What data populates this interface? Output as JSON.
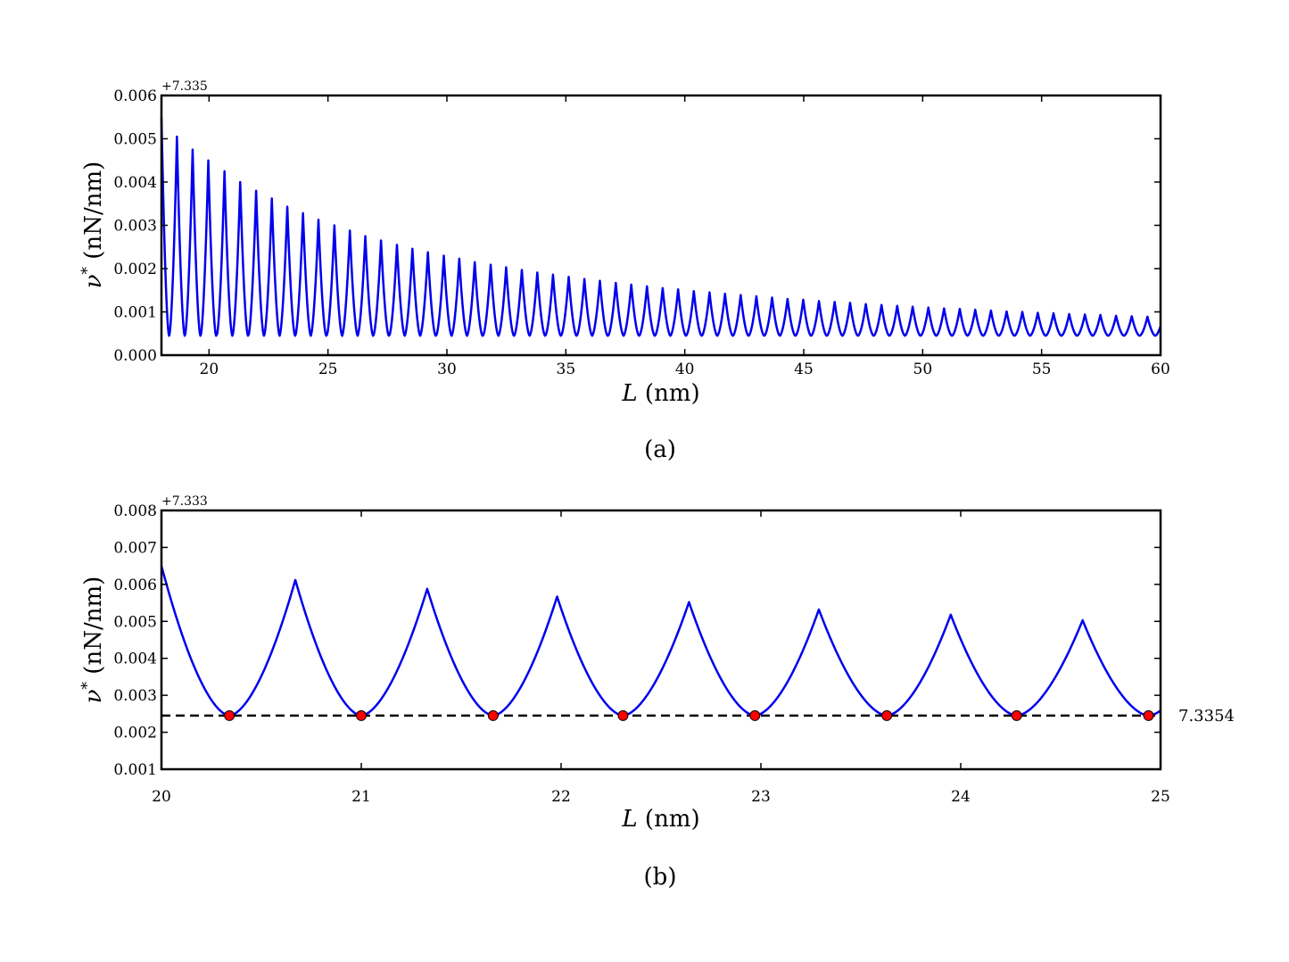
{
  "chart_data": [
    {
      "type": "line",
      "panel": "a",
      "caption": "(a)",
      "xlabel": "L (nm)",
      "xlabel_var": "L",
      "xlabel_unit": "(nm)",
      "ylabel": "ν* (nN/nm)",
      "ylabel_var": "ν",
      "ylabel_sup": "*",
      "ylabel_unit": "(nN/nm)",
      "y_offset_label": "+7.335",
      "xlim": [
        18,
        60
      ],
      "ylim": [
        0.0,
        0.006
      ],
      "x_ticks": [
        20,
        25,
        30,
        35,
        40,
        45,
        50,
        55,
        60
      ],
      "y_ticks": [
        0.0,
        0.001,
        0.002,
        0.003,
        0.004,
        0.005,
        0.006
      ],
      "y_tick_labels": [
        "0.000",
        "0.001",
        "0.002",
        "0.003",
        "0.004",
        "0.005",
        "0.006"
      ],
      "grid": false,
      "series": [
        {
          "color": "#0000ee",
          "description": "cusp-shaped oscillation with period ≈ 0.657 nm; minima constant at ≈ 0.00045 (offset units), peak heights decay with L",
          "period": 0.657,
          "min_value": 0.00045,
          "start_value": 0.0055,
          "peaks": [
            [
              18.65,
              0.00505
            ],
            [
              19.31,
              0.00475
            ],
            [
              19.97,
              0.0045
            ],
            [
              20.65,
              0.00425
            ],
            [
              21.31,
              0.004
            ],
            [
              21.98,
              0.0038
            ],
            [
              22.64,
              0.00362
            ],
            [
              23.29,
              0.00343
            ],
            [
              23.95,
              0.00328
            ],
            [
              24.6,
              0.00313
            ],
            [
              25.27,
              0.003
            ],
            [
              25.92,
              0.00288
            ],
            [
              26.57,
              0.00275
            ],
            [
              27.23,
              0.00265
            ],
            [
              27.9,
              0.00255
            ],
            [
              28.55,
              0.00246
            ],
            [
              29.2,
              0.00238
            ],
            [
              29.87,
              0.0023
            ],
            [
              30.52,
              0.00223
            ],
            [
              31.17,
              0.00215
            ],
            [
              31.84,
              0.00209
            ],
            [
              32.49,
              0.00203
            ],
            [
              33.15,
              0.00197
            ],
            [
              33.8,
              0.00191
            ],
            [
              34.46,
              0.00186
            ],
            [
              35.12,
              0.00181
            ],
            [
              35.78,
              0.00176
            ],
            [
              36.43,
              0.00172
            ],
            [
              37.1,
              0.00167
            ],
            [
              37.75,
              0.00163
            ],
            [
              38.41,
              0.00159
            ],
            [
              39.07,
              0.00155
            ],
            [
              39.72,
              0.00152
            ],
            [
              40.38,
              0.00148
            ],
            [
              41.04,
              0.00145
            ],
            [
              41.69,
              0.00142
            ],
            [
              42.35,
              0.00139
            ],
            [
              43.01,
              0.00136
            ],
            [
              43.67,
              0.00133
            ],
            [
              44.32,
              0.0013
            ],
            [
              44.98,
              0.00128
            ],
            [
              45.64,
              0.00125
            ],
            [
              46.3,
              0.00123
            ],
            [
              46.95,
              0.00121
            ],
            [
              47.61,
              0.00118
            ],
            [
              48.27,
              0.00116
            ],
            [
              48.93,
              0.00114
            ],
            [
              49.58,
              0.00112
            ],
            [
              50.24,
              0.0011
            ],
            [
              50.9,
              0.00108
            ],
            [
              51.56,
              0.00107
            ],
            [
              52.21,
              0.00105
            ],
            [
              52.87,
              0.00103
            ],
            [
              53.53,
              0.00101
            ],
            [
              54.19,
              0.001
            ],
            [
              54.84,
              0.00098
            ],
            [
              55.5,
              0.00097
            ],
            [
              56.16,
              0.00095
            ],
            [
              56.82,
              0.00094
            ],
            [
              57.47,
              0.00093
            ],
            [
              58.13,
              0.00091
            ],
            [
              58.79,
              0.0009
            ],
            [
              59.45,
              0.00089
            ]
          ]
        }
      ]
    },
    {
      "type": "line",
      "panel": "b",
      "caption": "(b)",
      "xlabel": "L (nm)",
      "xlabel_var": "L",
      "xlabel_unit": "(nm)",
      "ylabel": "ν* (nN/nm)",
      "ylabel_var": "ν",
      "ylabel_sup": "*",
      "ylabel_unit": "(nN/nm)",
      "y_offset_label": "+7.333",
      "xlim": [
        20,
        25
      ],
      "ylim": [
        0.001,
        0.008
      ],
      "x_ticks": [
        20,
        21,
        22,
        23,
        24,
        25
      ],
      "y_ticks": [
        0.001,
        0.002,
        0.003,
        0.004,
        0.005,
        0.006,
        0.007,
        0.008
      ],
      "y_tick_labels": [
        "0.001",
        "0.002",
        "0.003",
        "0.004",
        "0.005",
        "0.006",
        "0.007",
        "0.008"
      ],
      "grid": false,
      "reference_line": {
        "value": 0.00245,
        "label": "7.3354",
        "style": "dashed",
        "color": "#000000"
      },
      "series": [
        {
          "color": "#0000ee",
          "start": [
            20.0,
            0.0065
          ],
          "peaks": [
            [
              20.67,
              0.00612
            ],
            [
              21.33,
              0.00588
            ],
            [
              21.98,
              0.00567
            ],
            [
              22.64,
              0.00552
            ],
            [
              23.29,
              0.00532
            ],
            [
              23.95,
              0.00518
            ],
            [
              24.61,
              0.00503
            ]
          ],
          "minima_value": 0.00245
        }
      ],
      "markers": {
        "color": "#ff0000",
        "edge": "#000000",
        "x": [
          20.34,
          21.0,
          21.66,
          22.31,
          22.97,
          23.63,
          24.28,
          24.94
        ],
        "y": 0.00245
      }
    }
  ]
}
